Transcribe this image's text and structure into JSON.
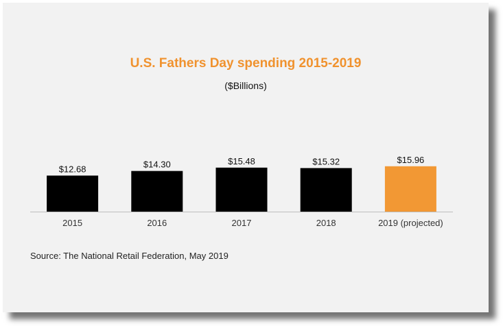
{
  "chart_data": {
    "type": "bar",
    "title": "U.S. Fathers Day spending 2015-2019",
    "subtitle": "($Billions)",
    "categories": [
      "2015",
      "2016",
      "2017",
      "2018",
      "2019 (projected)"
    ],
    "values": [
      12.68,
      14.3,
      15.48,
      15.32,
      15.96
    ],
    "data_labels": [
      "$12.68",
      "$14.30",
      "$15.48",
      "$15.32",
      "$15.96"
    ],
    "bar_colors": [
      "#000000",
      "#000000",
      "#000000",
      "#000000",
      "#f29834"
    ],
    "xlabel": "",
    "ylabel": "",
    "grid": false,
    "source": "Source: The National Retail Federation, May 2019"
  },
  "colors": {
    "title": "#f0922e",
    "highlight": "#f29834",
    "bar": "#000000",
    "background": "#f2f2f2"
  }
}
